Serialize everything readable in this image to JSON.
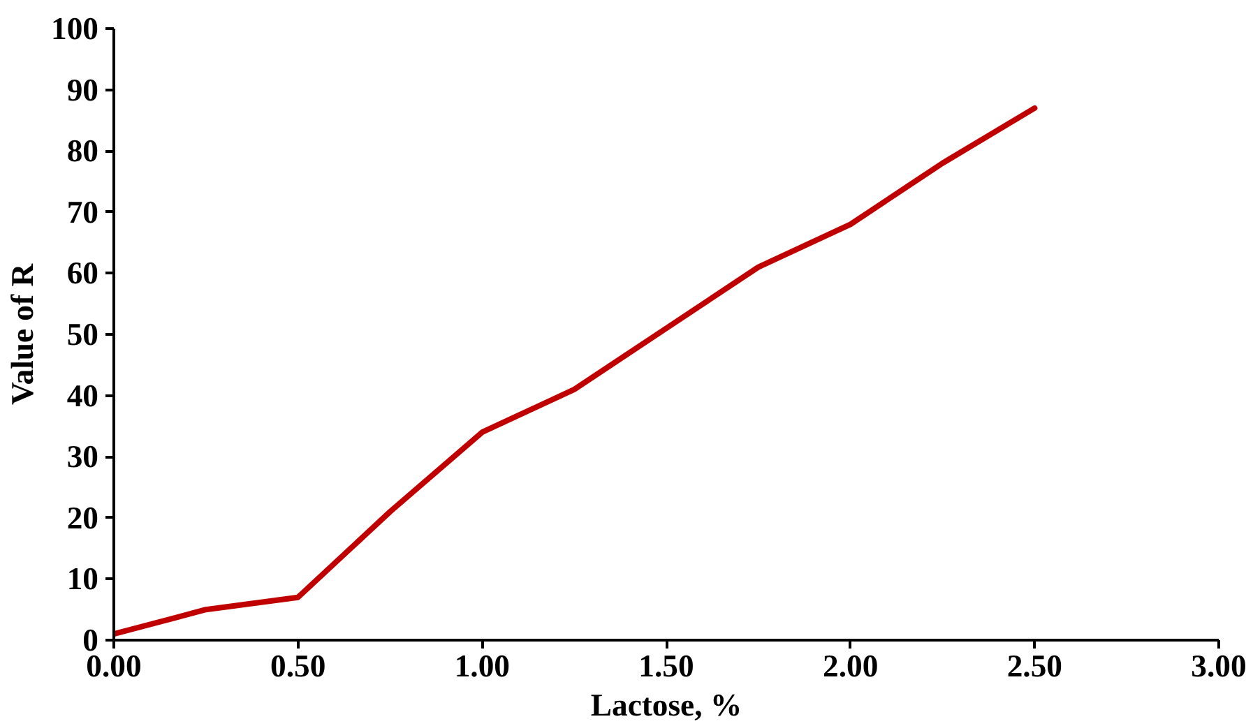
{
  "chart_data": {
    "type": "line",
    "xlabel": "Lactose, %",
    "ylabel": "Value of R",
    "x": [
      0,
      0.25,
      0.5,
      0.75,
      1.0,
      1.25,
      1.5,
      1.75,
      2.0,
      2.25,
      2.5
    ],
    "series": [
      {
        "color": "#c00000",
        "values": [
          1,
          5,
          7,
          21,
          34,
          41,
          51,
          61,
          68,
          78,
          87
        ]
      }
    ],
    "xlim": [
      0,
      3
    ],
    "ylim": [
      0,
      100
    ],
    "xticks": [
      {
        "value": 0,
        "label": "0.00"
      },
      {
        "value": 0.5,
        "label": "0.50"
      },
      {
        "value": 1,
        "label": "1.00"
      },
      {
        "value": 1.5,
        "label": "1.50"
      },
      {
        "value": 2,
        "label": "2.00"
      },
      {
        "value": 2.5,
        "label": "2.50"
      },
      {
        "value": 3,
        "label": "3.00"
      }
    ],
    "yticks": [
      0,
      10,
      20,
      30,
      40,
      50,
      60,
      70,
      80,
      90,
      100
    ],
    "grid": false,
    "marker": "none",
    "line_style": "solid"
  }
}
